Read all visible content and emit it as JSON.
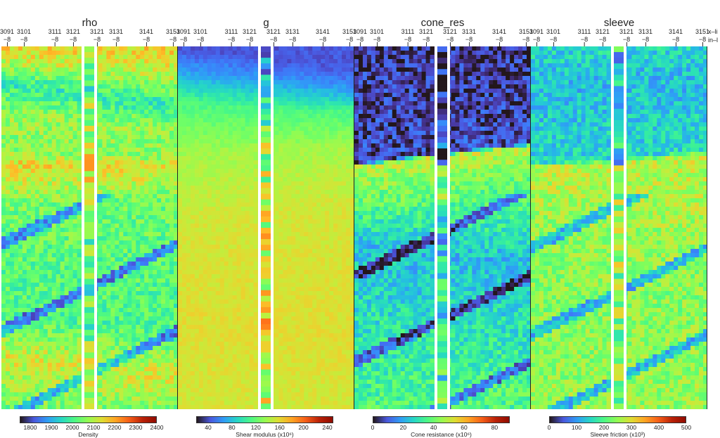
{
  "chart_data": [
    {
      "type": "heatmap",
      "title": "rho",
      "x_ticks": [
        {
          "xline": "3091",
          "inline": "−8"
        },
        {
          "xline": "3101",
          "inline": "−8"
        },
        {
          "xline": "3111",
          "inline": "−8"
        },
        {
          "xline": "3121",
          "inline": "−8"
        },
        {
          "xline": "3121",
          "inline": "−8"
        },
        {
          "xline": "3131",
          "inline": "−8"
        },
        {
          "xline": "3141",
          "inline": "−8"
        },
        {
          "xline": "3151",
          "inline": "−8"
        }
      ],
      "colorbar": {
        "label": "Density",
        "ticks": [
          "1800",
          "1900",
          "2000",
          "2100",
          "2200",
          "2300",
          "2400"
        ],
        "range": [
          1750,
          2400
        ]
      },
      "bands_relative": [
        {
          "depth": 0.0,
          "value": 0.62
        },
        {
          "depth": 0.04,
          "value": 0.55
        },
        {
          "depth": 0.1,
          "value": 0.35
        },
        {
          "depth": 0.18,
          "value": 0.5
        },
        {
          "depth": 0.28,
          "value": 0.48
        },
        {
          "depth": 0.32,
          "value": 0.62
        },
        {
          "depth": 0.45,
          "value": 0.45
        },
        {
          "depth": 0.6,
          "value": 0.42
        },
        {
          "depth": 0.75,
          "value": 0.4
        },
        {
          "depth": 0.86,
          "value": 0.58
        },
        {
          "depth": 1.0,
          "value": 0.45
        }
      ]
    },
    {
      "type": "heatmap",
      "title": "g",
      "x_ticks": [
        {
          "xline": "3091",
          "inline": "−8"
        },
        {
          "xline": "3101",
          "inline": "−8"
        },
        {
          "xline": "3111",
          "inline": "−8"
        },
        {
          "xline": "3121",
          "inline": "−8"
        },
        {
          "xline": "3121",
          "inline": "−8"
        },
        {
          "xline": "3131",
          "inline": "−8"
        },
        {
          "xline": "3141",
          "inline": "−8"
        },
        {
          "xline": "3151",
          "inline": "−8"
        }
      ],
      "colorbar": {
        "label": "Shear modulus (x10⁶)",
        "ticks": [
          "40",
          "80",
          "120",
          "160",
          "200",
          "240"
        ],
        "range": [
          20,
          250
        ]
      },
      "bands_relative": [
        {
          "depth": 0.0,
          "value": 0.1
        },
        {
          "depth": 0.06,
          "value": 0.2
        },
        {
          "depth": 0.15,
          "value": 0.4
        },
        {
          "depth": 0.3,
          "value": 0.52
        },
        {
          "depth": 0.5,
          "value": 0.58
        },
        {
          "depth": 0.75,
          "value": 0.6
        },
        {
          "depth": 1.0,
          "value": 0.58
        }
      ]
    },
    {
      "type": "heatmap",
      "title": "cone_res",
      "x_ticks": [
        {
          "xline": "3091",
          "inline": "−8"
        },
        {
          "xline": "3101",
          "inline": "−8"
        },
        {
          "xline": "3111",
          "inline": "−8"
        },
        {
          "xline": "3121",
          "inline": "−8"
        },
        {
          "xline": "3121",
          "inline": "−8"
        },
        {
          "xline": "3131",
          "inline": "−8"
        },
        {
          "xline": "3141",
          "inline": "−8"
        },
        {
          "xline": "3151",
          "inline": "−8"
        }
      ],
      "colorbar": {
        "label": "Cone resistance (x10⁶)",
        "ticks": [
          "0",
          "20",
          "40",
          "60",
          "80"
        ],
        "range": [
          0,
          90
        ]
      },
      "bands_relative": [
        {
          "depth": 0.0,
          "value": 0.05
        },
        {
          "depth": 0.32,
          "value": 0.08
        },
        {
          "depth": 0.33,
          "value": 0.55
        },
        {
          "depth": 0.45,
          "value": 0.4
        },
        {
          "depth": 0.55,
          "value": 0.25
        },
        {
          "depth": 0.7,
          "value": 0.3
        },
        {
          "depth": 0.85,
          "value": 0.35
        },
        {
          "depth": 1.0,
          "value": 0.4
        }
      ]
    },
    {
      "type": "heatmap",
      "title": "sleeve",
      "x_ticks": [
        {
          "xline": "3091",
          "inline": "−8"
        },
        {
          "xline": "3101",
          "inline": "−8"
        },
        {
          "xline": "3111",
          "inline": "−8"
        },
        {
          "xline": "3121",
          "inline": "−8"
        },
        {
          "xline": "3121",
          "inline": "−8"
        },
        {
          "xline": "3131",
          "inline": "−8"
        },
        {
          "xline": "3141",
          "inline": "−8"
        },
        {
          "xline": "3151",
          "inline": "−8"
        }
      ],
      "colorbar": {
        "label": "Sleeve friction (x10³)",
        "ticks": [
          "0",
          "100",
          "200",
          "300",
          "400",
          "500"
        ],
        "range": [
          0,
          500
        ]
      },
      "bands_relative": [
        {
          "depth": 0.0,
          "value": 0.3
        },
        {
          "depth": 0.12,
          "value": 0.25
        },
        {
          "depth": 0.32,
          "value": 0.3
        },
        {
          "depth": 0.33,
          "value": 0.55
        },
        {
          "depth": 0.5,
          "value": 0.5
        },
        {
          "depth": 0.7,
          "value": 0.48
        },
        {
          "depth": 1.0,
          "value": 0.5
        }
      ]
    }
  ],
  "axis_labels": {
    "xline": "x–li",
    "inline": "in–l"
  },
  "colors": {
    "colormap": "turbo",
    "well_gap": "#ffffff",
    "frame": "#222222"
  }
}
